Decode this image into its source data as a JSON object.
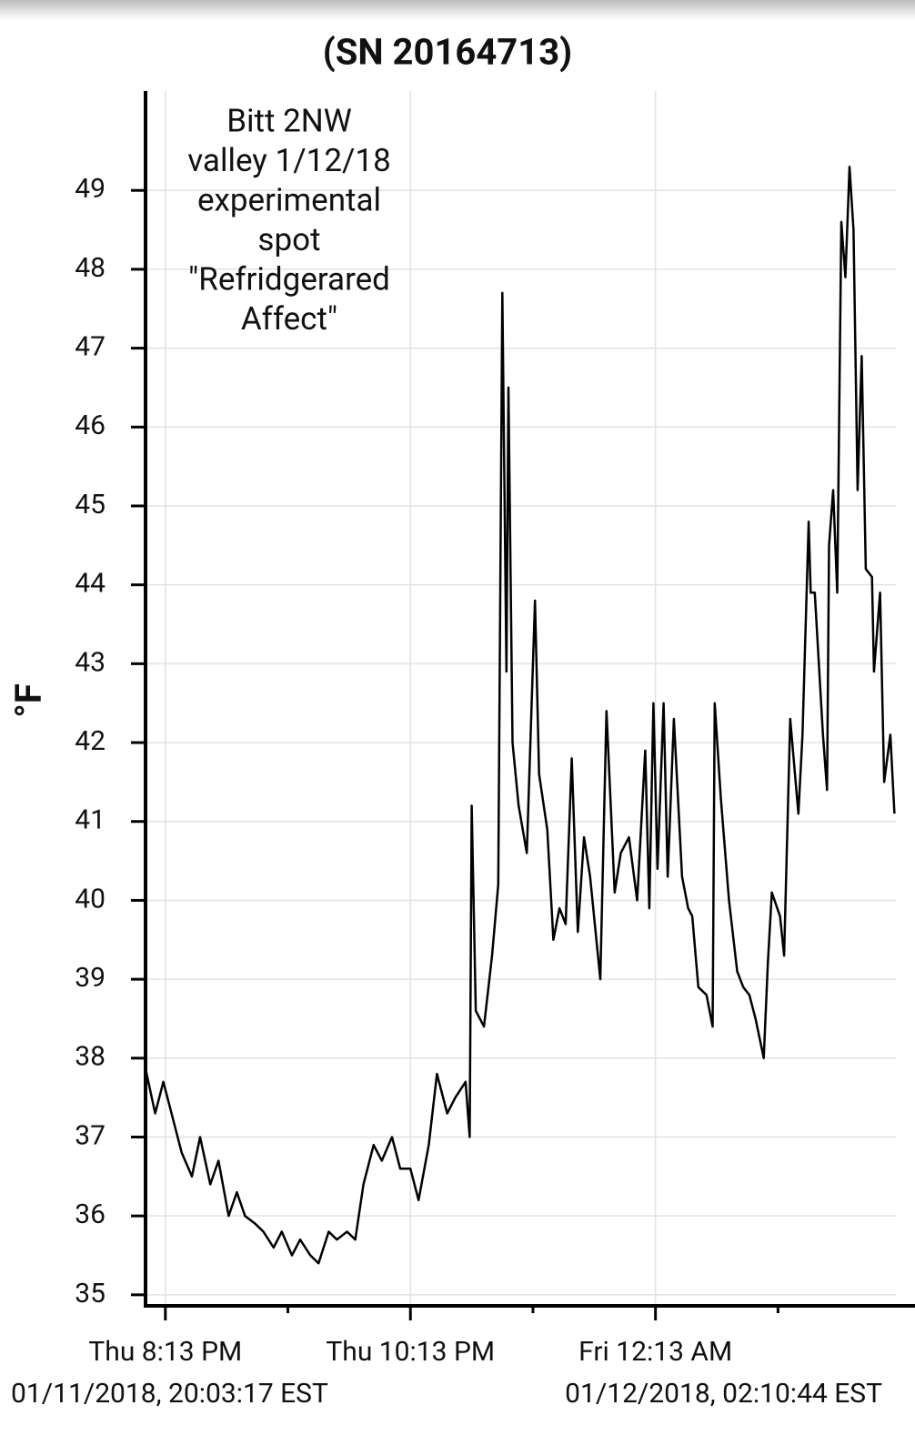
{
  "chart_data": {
    "type": "line",
    "title": "(SN 20164713)",
    "y_label": "°F",
    "annotation": [
      "Bitt 2NW",
      "valley 1/12/18",
      "experimental",
      "spot",
      "\"Refridgerared",
      "Affect\""
    ],
    "start_label": "01/11/2018, 20:03:17 EST",
    "end_label": "01/12/2018, 02:10:44 EST",
    "xlim": [
      "2018-01-11T20:03:17",
      "2018-01-12T02:10:44"
    ],
    "xticks": [
      {
        "value": "2018-01-11T20:13",
        "label": "Thu 8:13 PM"
      },
      {
        "value": "2018-01-11T22:13",
        "label": "Thu 10:13 PM"
      },
      {
        "value": "2018-01-12T00:13",
        "label": "Fri 12:13 AM"
      }
    ],
    "xminorticks": [
      "2018-01-11T21:13",
      "2018-01-11T23:13",
      "2018-01-12T01:13"
    ],
    "ylim": [
      34.86,
      50.26
    ],
    "yticks": [
      35,
      36,
      37,
      38,
      39,
      40,
      41,
      42,
      43,
      44,
      45,
      46,
      47,
      48,
      49
    ],
    "grid": true,
    "series": [
      {
        "color": "#000000",
        "x": [
          "2018-01-11T20:03",
          "2018-01-11T20:08",
          "2018-01-11T20:12",
          "2018-01-11T20:17",
          "2018-01-11T20:21",
          "2018-01-11T20:26",
          "2018-01-11T20:30",
          "2018-01-11T20:35",
          "2018-01-11T20:39",
          "2018-01-11T20:44",
          "2018-01-11T20:48",
          "2018-01-11T20:52",
          "2018-01-11T20:57",
          "2018-01-11T21:01",
          "2018-01-11T21:06",
          "2018-01-11T21:10",
          "2018-01-11T21:15",
          "2018-01-11T21:19",
          "2018-01-11T21:24",
          "2018-01-11T21:28",
          "2018-01-11T21:33",
          "2018-01-11T21:37",
          "2018-01-11T21:42",
          "2018-01-11T21:46",
          "2018-01-11T21:50",
          "2018-01-11T21:55",
          "2018-01-11T21:59",
          "2018-01-11T22:04",
          "2018-01-11T22:08",
          "2018-01-11T22:13",
          "2018-01-11T22:17",
          "2018-01-11T22:22",
          "2018-01-11T22:26",
          "2018-01-11T22:31",
          "2018-01-11T22:35",
          "2018-01-11T22:40",
          "2018-01-11T22:42",
          "2018-01-11T22:43",
          "2018-01-11T22:45",
          "2018-01-11T22:49",
          "2018-01-11T22:53",
          "2018-01-11T22:56",
          "2018-01-11T22:58",
          "2018-01-11T23:00",
          "2018-01-11T23:01",
          "2018-01-11T23:03",
          "2018-01-11T23:06",
          "2018-01-11T23:10",
          "2018-01-11T23:14",
          "2018-01-11T23:16",
          "2018-01-11T23:20",
          "2018-01-11T23:23",
          "2018-01-11T23:26",
          "2018-01-11T23:29",
          "2018-01-11T23:32",
          "2018-01-11T23:35",
          "2018-01-11T23:38",
          "2018-01-11T23:41",
          "2018-01-11T23:46",
          "2018-01-11T23:49",
          "2018-01-11T23:53",
          "2018-01-11T23:56",
          "2018-01-12T00:00",
          "2018-01-12T00:04",
          "2018-01-12T00:08",
          "2018-01-12T00:10",
          "2018-01-12T00:12",
          "2018-01-12T00:14",
          "2018-01-12T00:17",
          "2018-01-12T00:19",
          "2018-01-12T00:22",
          "2018-01-12T00:26",
          "2018-01-12T00:29",
          "2018-01-12T00:31",
          "2018-01-12T00:34",
          "2018-01-12T00:38",
          "2018-01-12T00:41",
          "2018-01-12T00:42",
          "2018-01-12T00:45",
          "2018-01-12T00:49",
          "2018-01-12T00:53",
          "2018-01-12T00:56",
          "2018-01-12T00:59",
          "2018-01-12T01:02",
          "2018-01-12T01:06",
          "2018-01-12T01:08",
          "2018-01-12T01:10",
          "2018-01-12T01:14",
          "2018-01-12T01:16",
          "2018-01-12T01:19",
          "2018-01-12T01:23",
          "2018-01-12T01:25",
          "2018-01-12T01:28",
          "2018-01-12T01:29",
          "2018-01-12T01:31",
          "2018-01-12T01:35",
          "2018-01-12T01:37",
          "2018-01-12T01:38",
          "2018-01-12T01:40",
          "2018-01-12T01:42",
          "2018-01-12T01:44",
          "2018-01-12T01:46",
          "2018-01-12T01:48",
          "2018-01-12T01:50",
          "2018-01-12T01:52",
          "2018-01-12T01:54",
          "2018-01-12T01:56",
          "2018-01-12T01:59",
          "2018-01-12T02:00",
          "2018-01-12T02:03",
          "2018-01-12T02:05",
          "2018-01-12T02:08",
          "2018-01-12T02:10"
        ],
        "values": [
          37.9,
          37.3,
          37.7,
          37.2,
          36.8,
          36.5,
          37.0,
          36.4,
          36.7,
          36.0,
          36.3,
          36.0,
          35.9,
          35.8,
          35.6,
          35.8,
          35.5,
          35.7,
          35.5,
          35.4,
          35.8,
          35.7,
          35.8,
          35.7,
          36.4,
          36.9,
          36.7,
          37.0,
          36.6,
          36.6,
          36.2,
          36.9,
          37.8,
          37.3,
          37.5,
          37.7,
          37.0,
          41.2,
          38.6,
          38.4,
          39.3,
          40.2,
          47.7,
          42.9,
          46.5,
          42.0,
          41.2,
          40.6,
          43.8,
          41.6,
          40.9,
          39.5,
          39.9,
          39.7,
          41.8,
          39.6,
          40.8,
          40.3,
          39.0,
          42.4,
          40.1,
          40.6,
          40.8,
          40.0,
          41.9,
          39.9,
          42.5,
          40.4,
          42.5,
          40.3,
          42.3,
          40.3,
          39.9,
          39.8,
          38.9,
          38.8,
          38.4,
          42.5,
          41.3,
          40.0,
          39.1,
          38.9,
          38.8,
          38.5,
          38.0,
          39.2,
          40.1,
          39.8,
          39.3,
          42.3,
          41.1,
          42.1,
          44.8,
          43.9,
          43.9,
          42.1,
          41.4,
          44.5,
          45.2,
          43.9,
          48.6,
          47.9,
          49.3,
          48.5,
          45.2,
          46.9,
          44.2,
          44.1,
          42.9,
          43.9,
          41.5,
          42.1,
          41.1
        ]
      }
    ]
  }
}
